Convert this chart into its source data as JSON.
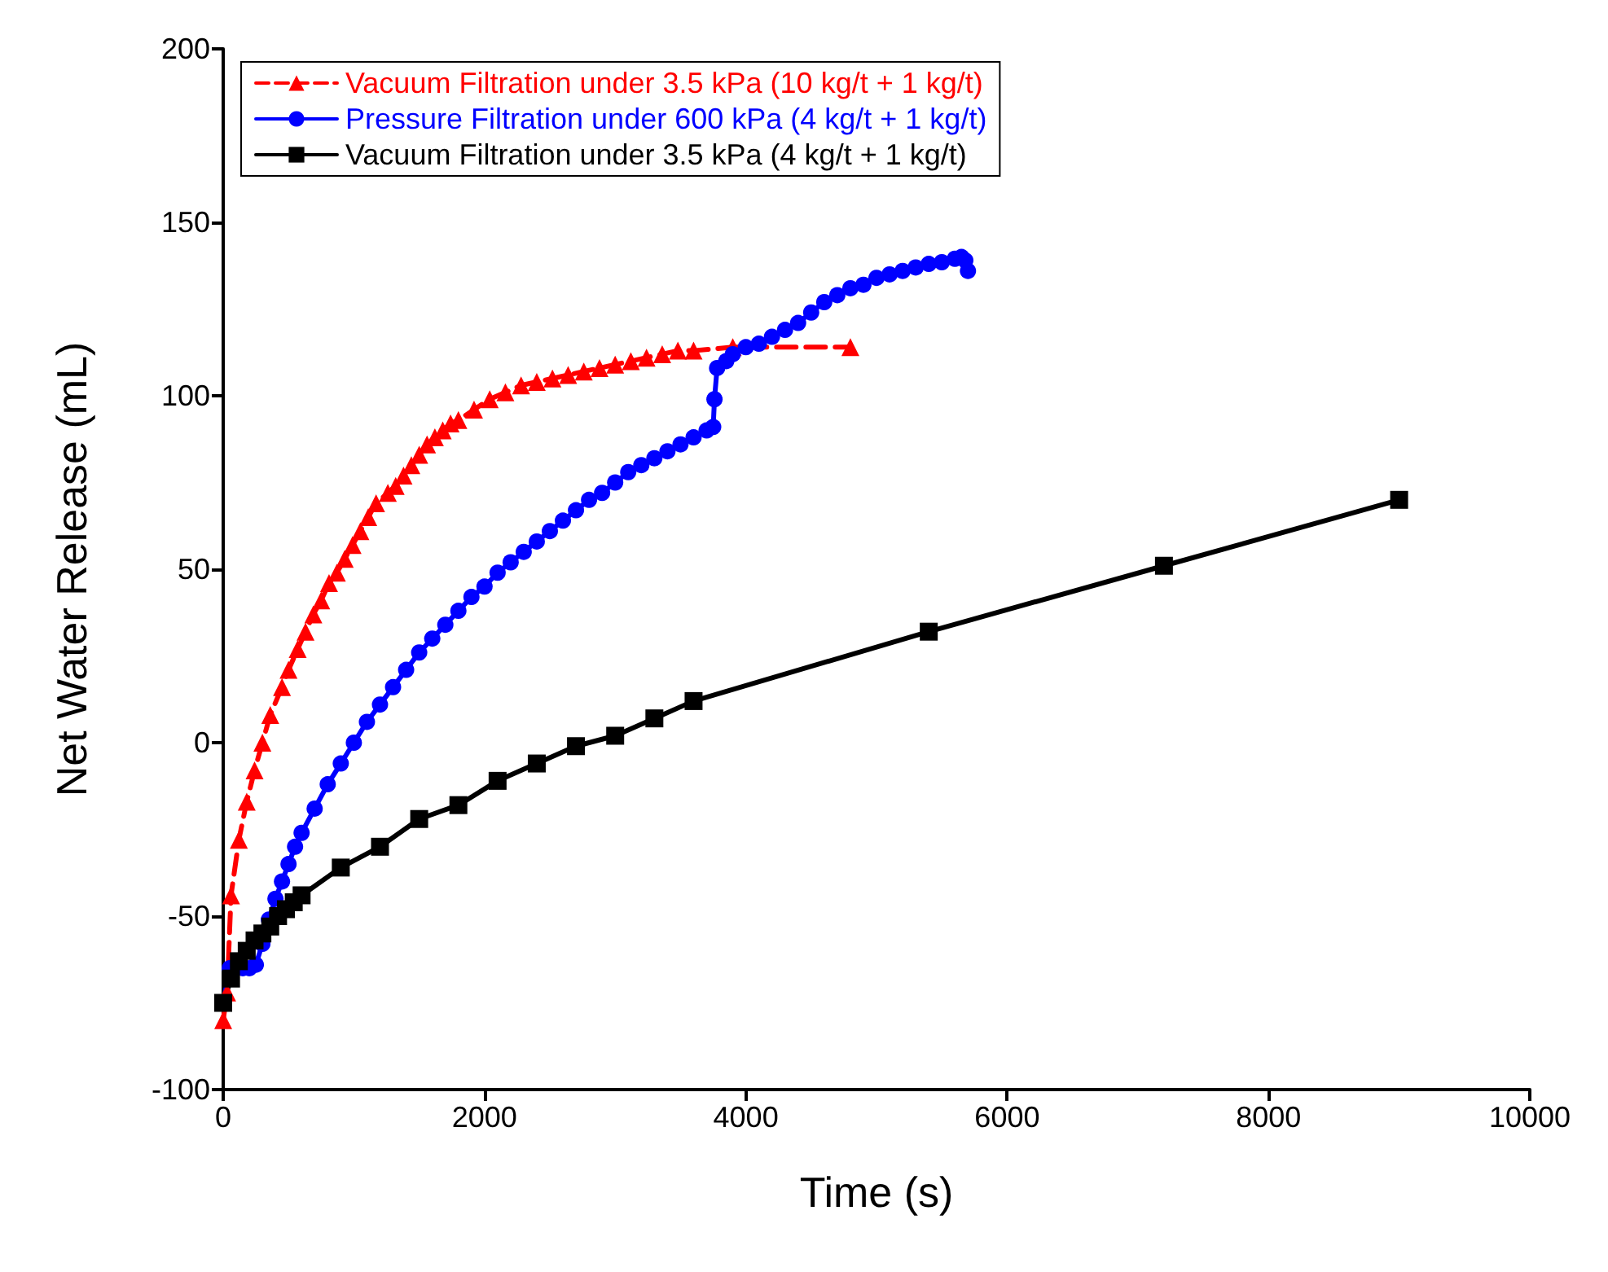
{
  "chart_data": {
    "type": "line",
    "xlabel": "Time (s)",
    "ylabel": "Net Water Release (mL)",
    "xlim": [
      0,
      10000
    ],
    "xticks": [
      0,
      2000,
      4000,
      6000,
      8000,
      10000
    ],
    "ylim": [
      -100,
      200
    ],
    "yticks": [
      -100,
      -50,
      0,
      50,
      100,
      150,
      200
    ],
    "grid": false,
    "legend": "top left",
    "series": [
      {
        "name": "Vacuum Filtration under 3.5 kPa (10 kg/t + 1 kg/t)",
        "color": "#ff0000",
        "marker": "triangle",
        "line_style": "dashed",
        "x": [
          0,
          30,
          60,
          120,
          180,
          240,
          300,
          360,
          450,
          500,
          570,
          630,
          690,
          750,
          810,
          870,
          930,
          990,
          1050,
          1110,
          1170,
          1260,
          1320,
          1380,
          1440,
          1500,
          1560,
          1620,
          1680,
          1740,
          1800,
          1920,
          2040,
          2160,
          2280,
          2400,
          2520,
          2640,
          2760,
          2880,
          3000,
          3120,
          3240,
          3360,
          3480,
          3600,
          3900,
          4800
        ],
        "values": [
          -80,
          -72,
          -44,
          -28,
          -17,
          -8,
          0,
          8,
          16,
          21,
          27,
          32,
          37,
          41,
          46,
          49,
          53,
          57,
          61,
          65,
          69,
          72,
          74,
          77,
          80,
          83,
          86,
          88,
          90,
          92,
          93,
          96,
          99,
          101,
          103,
          104,
          105,
          106,
          107,
          108,
          109,
          110,
          111,
          112,
          113,
          113,
          114,
          114
        ]
      },
      {
        "name": "Pressure Filtration under 600 kPa (4 kg/t + 1 kg/t)",
        "color": "#0000ff",
        "marker": "circle",
        "line_style": "solid",
        "x": [
          0,
          50,
          100,
          150,
          200,
          250,
          300,
          350,
          400,
          450,
          500,
          550,
          600,
          700,
          800,
          900,
          1000,
          1100,
          1200,
          1300,
          1400,
          1500,
          1600,
          1700,
          1800,
          1900,
          2000,
          2100,
          2200,
          2300,
          2400,
          2500,
          2600,
          2700,
          2800,
          2900,
          3000,
          3100,
          3200,
          3300,
          3400,
          3500,
          3600,
          3700,
          3750,
          3760,
          3780,
          3850,
          3900,
          4000,
          4100,
          4200,
          4300,
          4400,
          4500,
          4600,
          4700,
          4800,
          4900,
          5000,
          5100,
          5200,
          5300,
          5400,
          5500,
          5600,
          5650,
          5680,
          5700
        ],
        "values": [
          -75,
          -65,
          -65,
          -65,
          -65,
          -64,
          -58,
          -51,
          -45,
          -40,
          -35,
          -30,
          -26,
          -19,
          -12,
          -6,
          0,
          6,
          11,
          16,
          21,
          26,
          30,
          34,
          38,
          42,
          45,
          49,
          52,
          55,
          58,
          61,
          64,
          67,
          70,
          72,
          75,
          78,
          80,
          82,
          84,
          86,
          88,
          90,
          91,
          99,
          108,
          110,
          112,
          114,
          115,
          117,
          119,
          121,
          124,
          127,
          129,
          131,
          132,
          134,
          135,
          136,
          137,
          138,
          138.5,
          139.5,
          140,
          139,
          136
        ]
      },
      {
        "name": "Vacuum Filtration under 3.5 kPa (4 kg/t + 1 kg/t)",
        "color": "#000000",
        "marker": "square",
        "line_style": "solid",
        "x": [
          0,
          60,
          120,
          180,
          240,
          300,
          360,
          420,
          480,
          540,
          600,
          900,
          1200,
          1500,
          1800,
          2100,
          2400,
          2700,
          3000,
          3300,
          3600,
          5400,
          7200,
          9000
        ],
        "values": [
          -75,
          -68,
          -63,
          -60,
          -57,
          -55,
          -53,
          -50,
          -48,
          -46,
          -44,
          -36,
          -30,
          -22,
          -18,
          -11,
          -6,
          -1,
          2,
          7,
          12,
          32,
          51,
          70
        ]
      }
    ]
  }
}
